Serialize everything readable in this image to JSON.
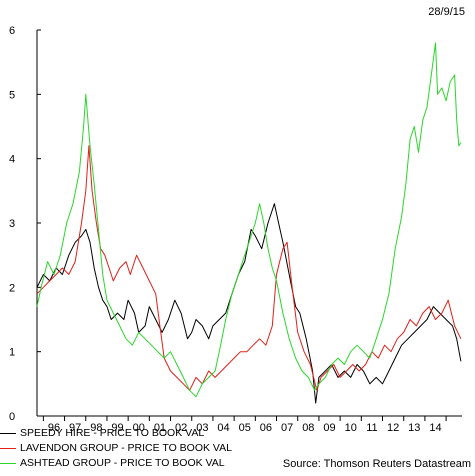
{
  "date": "28/9/15",
  "source": "Source: Thomson Reuters Datastream",
  "colors": {
    "speedy": "#000000",
    "lavendon": "#e0201a",
    "ashtead": "#2bd62b"
  },
  "chart_data": {
    "type": "line",
    "title": "",
    "xlabel": "",
    "ylabel": "",
    "xlim": [
      1995.7,
      2015.75
    ],
    "ylim": [
      0,
      6
    ],
    "yticks": [
      0,
      1,
      2,
      3,
      4,
      5,
      6
    ],
    "xtick_labels": [
      "96",
      "97",
      "98",
      "99",
      "00",
      "01",
      "02",
      "03",
      "04",
      "05",
      "06",
      "07",
      "08",
      "09",
      "10",
      "11",
      "12",
      "13",
      "14"
    ],
    "xtick_values": [
      1996.5,
      1997.5,
      1998.5,
      1999.5,
      2000.5,
      2001.5,
      2002.5,
      2003.5,
      2004.5,
      2005.5,
      2006.5,
      2007.5,
      2008.5,
      2009.5,
      2010.5,
      2011.5,
      2012.5,
      2013.5,
      2014.5
    ],
    "grid": false,
    "legend_position": "bottom-left",
    "series": [
      {
        "name": "SPEEDY HIRE - PRICE TO BOOK VAL",
        "color": "#000000",
        "points": [
          [
            1995.7,
            2.0
          ],
          [
            1996.0,
            2.2
          ],
          [
            1996.3,
            2.1
          ],
          [
            1996.6,
            2.3
          ],
          [
            1996.9,
            2.2
          ],
          [
            1997.2,
            2.5
          ],
          [
            1997.5,
            2.7
          ],
          [
            1997.8,
            2.8
          ],
          [
            1998.0,
            2.9
          ],
          [
            1998.2,
            2.7
          ],
          [
            1998.4,
            2.3
          ],
          [
            1998.6,
            2.0
          ],
          [
            1998.8,
            1.8
          ],
          [
            1999.0,
            1.7
          ],
          [
            1999.2,
            1.5
          ],
          [
            1999.5,
            1.6
          ],
          [
            1999.8,
            1.5
          ],
          [
            2000.0,
            1.8
          ],
          [
            2000.3,
            1.6
          ],
          [
            2000.5,
            1.3
          ],
          [
            2000.8,
            1.4
          ],
          [
            2001.0,
            1.7
          ],
          [
            2001.3,
            1.5
          ],
          [
            2001.6,
            1.3
          ],
          [
            2001.9,
            1.5
          ],
          [
            2002.2,
            1.8
          ],
          [
            2002.5,
            1.6
          ],
          [
            2002.8,
            1.2
          ],
          [
            2003.0,
            1.3
          ],
          [
            2003.2,
            1.5
          ],
          [
            2003.5,
            1.4
          ],
          [
            2003.8,
            1.2
          ],
          [
            2004.0,
            1.4
          ],
          [
            2004.3,
            1.5
          ],
          [
            2004.6,
            1.6
          ],
          [
            2004.9,
            1.9
          ],
          [
            2005.2,
            2.2
          ],
          [
            2005.5,
            2.4
          ],
          [
            2005.8,
            2.9
          ],
          [
            2006.0,
            2.8
          ],
          [
            2006.3,
            2.6
          ],
          [
            2006.6,
            3.0
          ],
          [
            2006.9,
            3.3
          ],
          [
            2007.1,
            3.0
          ],
          [
            2007.3,
            2.7
          ],
          [
            2007.6,
            2.2
          ],
          [
            2007.9,
            1.7
          ],
          [
            2008.1,
            1.6
          ],
          [
            2008.4,
            1.2
          ],
          [
            2008.7,
            0.7
          ],
          [
            2008.85,
            0.2
          ],
          [
            2009.0,
            0.6
          ],
          [
            2009.3,
            0.7
          ],
          [
            2009.6,
            0.8
          ],
          [
            2009.9,
            0.6
          ],
          [
            2010.2,
            0.7
          ],
          [
            2010.5,
            0.6
          ],
          [
            2010.8,
            0.8
          ],
          [
            2011.1,
            0.7
          ],
          [
            2011.4,
            0.5
          ],
          [
            2011.7,
            0.6
          ],
          [
            2012.0,
            0.5
          ],
          [
            2012.3,
            0.7
          ],
          [
            2012.6,
            0.9
          ],
          [
            2012.9,
            1.1
          ],
          [
            2013.2,
            1.2
          ],
          [
            2013.5,
            1.3
          ],
          [
            2013.8,
            1.4
          ],
          [
            2014.1,
            1.5
          ],
          [
            2014.4,
            1.7
          ],
          [
            2014.7,
            1.6
          ],
          [
            2015.0,
            1.5
          ],
          [
            2015.3,
            1.4
          ],
          [
            2015.5,
            1.2
          ],
          [
            2015.7,
            0.85
          ]
        ]
      },
      {
        "name": "LAVENDON GROUP - PRICE TO BOOK VAL",
        "color": "#e0201a",
        "points": [
          [
            1995.7,
            1.9
          ],
          [
            1996.0,
            2.0
          ],
          [
            1996.3,
            2.1
          ],
          [
            1996.6,
            2.2
          ],
          [
            1996.9,
            2.3
          ],
          [
            1997.2,
            2.2
          ],
          [
            1997.5,
            2.4
          ],
          [
            1997.8,
            3.0
          ],
          [
            1998.0,
            3.5
          ],
          [
            1998.15,
            4.2
          ],
          [
            1998.3,
            3.5
          ],
          [
            1998.5,
            3.0
          ],
          [
            1998.7,
            2.6
          ],
          [
            1998.9,
            2.5
          ],
          [
            1999.1,
            2.3
          ],
          [
            1999.3,
            2.1
          ],
          [
            1999.6,
            2.3
          ],
          [
            1999.9,
            2.4
          ],
          [
            2000.1,
            2.2
          ],
          [
            2000.4,
            2.5
          ],
          [
            2000.7,
            2.3
          ],
          [
            2001.0,
            2.1
          ],
          [
            2001.3,
            1.9
          ],
          [
            2001.5,
            1.4
          ],
          [
            2001.7,
            0.9
          ],
          [
            2002.0,
            0.7
          ],
          [
            2002.3,
            0.6
          ],
          [
            2002.6,
            0.5
          ],
          [
            2002.9,
            0.4
          ],
          [
            2003.2,
            0.6
          ],
          [
            2003.5,
            0.5
          ],
          [
            2003.8,
            0.7
          ],
          [
            2004.1,
            0.6
          ],
          [
            2004.4,
            0.7
          ],
          [
            2004.7,
            0.8
          ],
          [
            2005.0,
            0.9
          ],
          [
            2005.3,
            1.0
          ],
          [
            2005.6,
            1.0
          ],
          [
            2005.9,
            1.1
          ],
          [
            2006.2,
            1.2
          ],
          [
            2006.5,
            1.1
          ],
          [
            2006.8,
            1.4
          ],
          [
            2007.0,
            2.2
          ],
          [
            2007.3,
            2.6
          ],
          [
            2007.5,
            2.7
          ],
          [
            2007.7,
            2.1
          ],
          [
            2008.0,
            1.3
          ],
          [
            2008.3,
            1.0
          ],
          [
            2008.6,
            0.8
          ],
          [
            2008.9,
            0.4
          ],
          [
            2009.1,
            0.6
          ],
          [
            2009.4,
            0.7
          ],
          [
            2009.7,
            0.8
          ],
          [
            2010.0,
            0.6
          ],
          [
            2010.3,
            0.7
          ],
          [
            2010.6,
            0.8
          ],
          [
            2010.9,
            0.7
          ],
          [
            2011.2,
            0.8
          ],
          [
            2011.5,
            1.0
          ],
          [
            2011.8,
            0.9
          ],
          [
            2012.1,
            1.1
          ],
          [
            2012.4,
            1.0
          ],
          [
            2012.7,
            1.2
          ],
          [
            2013.0,
            1.3
          ],
          [
            2013.3,
            1.5
          ],
          [
            2013.6,
            1.4
          ],
          [
            2013.9,
            1.6
          ],
          [
            2014.2,
            1.7
          ],
          [
            2014.5,
            1.5
          ],
          [
            2014.8,
            1.6
          ],
          [
            2015.1,
            1.8
          ],
          [
            2015.4,
            1.4
          ],
          [
            2015.7,
            1.2
          ]
        ]
      },
      {
        "name": "ASHTEAD GROUP - PRICE TO BOOK VAL",
        "color": "#2bd62b",
        "points": [
          [
            1995.7,
            1.7
          ],
          [
            1995.9,
            2.0
          ],
          [
            1996.2,
            2.4
          ],
          [
            1996.5,
            2.2
          ],
          [
            1996.8,
            2.5
          ],
          [
            1997.1,
            3.0
          ],
          [
            1997.4,
            3.3
          ],
          [
            1997.7,
            3.8
          ],
          [
            1997.9,
            4.5
          ],
          [
            1998.0,
            5.0
          ],
          [
            1998.2,
            4.2
          ],
          [
            1998.4,
            3.6
          ],
          [
            1998.6,
            2.9
          ],
          [
            1998.8,
            2.2
          ],
          [
            1999.0,
            1.8
          ],
          [
            1999.3,
            1.6
          ],
          [
            1999.6,
            1.4
          ],
          [
            1999.9,
            1.2
          ],
          [
            2000.2,
            1.1
          ],
          [
            2000.5,
            1.3
          ],
          [
            2000.8,
            1.2
          ],
          [
            2001.1,
            1.1
          ],
          [
            2001.4,
            1.0
          ],
          [
            2001.7,
            0.9
          ],
          [
            2002.0,
            1.0
          ],
          [
            2002.3,
            0.8
          ],
          [
            2002.6,
            0.6
          ],
          [
            2002.9,
            0.4
          ],
          [
            2003.2,
            0.3
          ],
          [
            2003.5,
            0.5
          ],
          [
            2003.8,
            0.6
          ],
          [
            2004.1,
            0.7
          ],
          [
            2004.3,
            1.0
          ],
          [
            2004.6,
            1.5
          ],
          [
            2004.9,
            1.9
          ],
          [
            2005.2,
            2.2
          ],
          [
            2005.5,
            2.5
          ],
          [
            2005.8,
            2.8
          ],
          [
            2006.0,
            3.0
          ],
          [
            2006.2,
            3.3
          ],
          [
            2006.4,
            3.0
          ],
          [
            2006.6,
            2.6
          ],
          [
            2006.8,
            2.3
          ],
          [
            2007.0,
            2.1
          ],
          [
            2007.3,
            1.6
          ],
          [
            2007.6,
            1.2
          ],
          [
            2007.9,
            0.9
          ],
          [
            2008.2,
            0.7
          ],
          [
            2008.5,
            0.6
          ],
          [
            2008.8,
            0.4
          ],
          [
            2009.0,
            0.5
          ],
          [
            2009.3,
            0.6
          ],
          [
            2009.6,
            0.8
          ],
          [
            2009.9,
            0.9
          ],
          [
            2010.2,
            0.8
          ],
          [
            2010.5,
            1.0
          ],
          [
            2010.8,
            1.1
          ],
          [
            2011.1,
            1.0
          ],
          [
            2011.4,
            0.9
          ],
          [
            2011.7,
            1.2
          ],
          [
            2012.0,
            1.5
          ],
          [
            2012.3,
            1.9
          ],
          [
            2012.6,
            2.6
          ],
          [
            2012.9,
            3.1
          ],
          [
            2013.1,
            3.6
          ],
          [
            2013.3,
            4.3
          ],
          [
            2013.5,
            4.5
          ],
          [
            2013.7,
            4.1
          ],
          [
            2013.9,
            4.6
          ],
          [
            2014.1,
            4.8
          ],
          [
            2014.3,
            5.3
          ],
          [
            2014.5,
            5.8
          ],
          [
            2014.6,
            5.0
          ],
          [
            2014.8,
            5.1
          ],
          [
            2015.0,
            4.9
          ],
          [
            2015.2,
            5.2
          ],
          [
            2015.4,
            5.3
          ],
          [
            2015.5,
            4.6
          ],
          [
            2015.6,
            4.2
          ],
          [
            2015.7,
            4.25
          ]
        ]
      }
    ]
  }
}
